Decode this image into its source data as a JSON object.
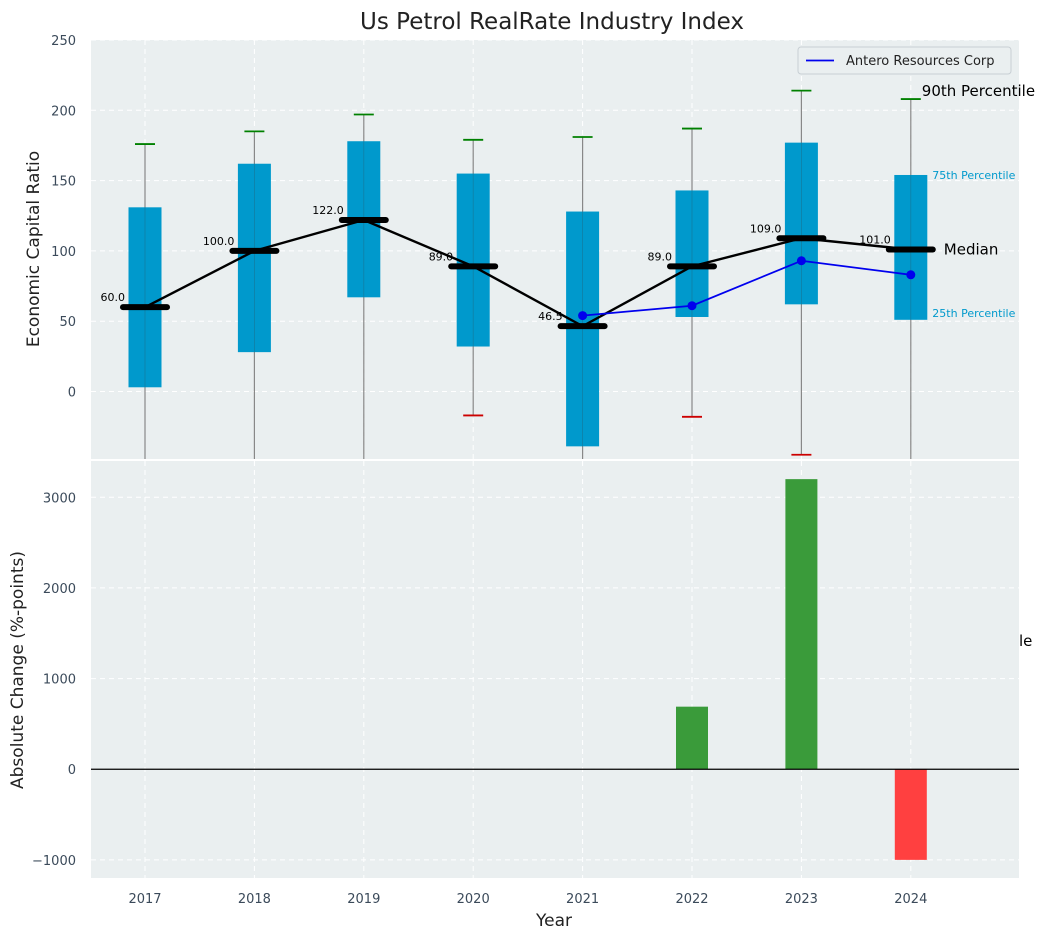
{
  "chart_data": [
    {
      "type": "box",
      "title": "Us Petrol RealRate Industry Index",
      "ylabel": "Economic Capital Ratio",
      "ylim": [
        -48,
        250
      ],
      "yticks": [
        0,
        50,
        100,
        150,
        200,
        250
      ],
      "categories": [
        "2017",
        "2018",
        "2019",
        "2020",
        "2021",
        "2022",
        "2023",
        "2024"
      ],
      "p90": [
        176,
        185,
        197,
        179,
        181,
        187,
        214,
        208
      ],
      "p10": [
        null,
        null,
        null,
        -17,
        null,
        -18,
        -45,
        null
      ],
      "p75": [
        131,
        162,
        178,
        155,
        128,
        143,
        177,
        154
      ],
      "p25": [
        3,
        28,
        67,
        32,
        -39,
        53,
        62,
        51
      ],
      "median": [
        60,
        100,
        122,
        89,
        46.5,
        89,
        109,
        101
      ],
      "median_labels": [
        "60.0",
        "100.0",
        "122.0",
        "89.0",
        "46.5",
        "89.0",
        "109.0",
        "101.0"
      ],
      "company_series": {
        "name": "Antero Resources Corp",
        "x": [
          "2021",
          "2022",
          "2023",
          "2024"
        ],
        "values": [
          54,
          61,
          93,
          83
        ]
      },
      "annotations": {
        "p90": "90th Percentile",
        "p75": "75th Percentile",
        "median": "Median",
        "p25": "25th Percentile",
        "clipped": "le"
      },
      "legend_placement": "top-right",
      "grid": true
    },
    {
      "type": "bar",
      "xlabel": "Year",
      "ylabel": "Absolute Change (%-points)",
      "ylim": [
        -1200,
        3400
      ],
      "yticks": [
        -1000,
        0,
        1000,
        2000,
        3000
      ],
      "categories": [
        "2017",
        "2018",
        "2019",
        "2020",
        "2021",
        "2022",
        "2023",
        "2024"
      ],
      "values": [
        0,
        0,
        0,
        0,
        0,
        690,
        3200,
        -1000
      ],
      "grid": true
    }
  ],
  "colors": {
    "background": "#eaeff0",
    "box": "#0099cc",
    "median": "#000000",
    "whisker": "#888888",
    "cap_high": "#008000",
    "cap_low": "#cc0000",
    "company_line": "#0000ee",
    "bar_positive": "#3a9b3a",
    "bar_negative": "#ff4040"
  }
}
